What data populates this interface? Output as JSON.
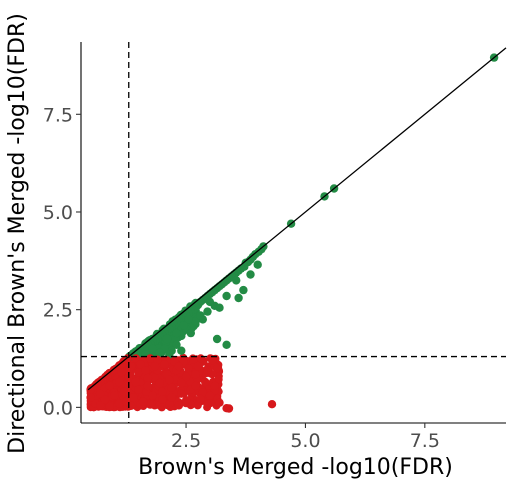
{
  "chart_data": {
    "type": "scatter",
    "title": "",
    "xlabel": "Brown's Merged -log10(FDR)",
    "ylabel": "Directional Brown's Merged -log10(FDR)",
    "xlim": [
      0.3,
      9.2
    ],
    "ylim": [
      -0.4,
      9.35
    ],
    "x_ticks": [
      2.5,
      5.0,
      7.5
    ],
    "x_tick_labels": [
      "2.5",
      "5.0",
      "7.5"
    ],
    "y_ticks": [
      0.0,
      2.5,
      5.0,
      7.5
    ],
    "y_tick_labels": [
      "0.0",
      "2.5",
      "5.0",
      "7.5"
    ],
    "grid": false,
    "legend": "none",
    "reference_lines": {
      "identity_line": "y = x",
      "vertical_threshold_x": 1.3,
      "horizontal_threshold_y": 1.3
    },
    "series": [
      {
        "color": "#238b45",
        "points": [
          [
            8.95,
            8.95
          ],
          [
            5.6,
            5.6
          ],
          [
            5.4,
            5.4
          ],
          [
            4.7,
            4.7
          ],
          [
            4.12,
            4.12
          ],
          [
            4.08,
            4.05
          ],
          [
            4.02,
            3.98
          ],
          [
            3.95,
            3.92
          ],
          [
            3.9,
            3.85
          ],
          [
            3.85,
            3.78
          ],
          [
            3.8,
            3.72
          ],
          [
            3.75,
            3.7
          ],
          [
            3.72,
            3.6
          ],
          [
            3.65,
            3.55
          ],
          [
            3.6,
            3.5
          ],
          [
            3.55,
            3.45
          ],
          [
            3.5,
            3.4
          ],
          [
            3.45,
            3.35
          ],
          [
            3.4,
            3.3
          ],
          [
            3.35,
            3.25
          ],
          [
            3.3,
            3.2
          ],
          [
            3.25,
            3.15
          ],
          [
            3.2,
            3.1
          ],
          [
            3.15,
            3.05
          ],
          [
            3.1,
            3.0
          ],
          [
            3.05,
            2.95
          ],
          [
            3.0,
            2.9
          ],
          [
            2.95,
            2.85
          ],
          [
            2.9,
            2.8
          ],
          [
            2.85,
            2.75
          ],
          [
            2.8,
            2.7
          ],
          [
            2.75,
            2.62
          ],
          [
            2.7,
            2.55
          ],
          [
            2.65,
            2.5
          ],
          [
            2.6,
            2.45
          ],
          [
            2.55,
            2.4
          ],
          [
            2.5,
            2.35
          ],
          [
            2.45,
            2.3
          ],
          [
            2.4,
            2.25
          ],
          [
            2.35,
            2.2
          ],
          [
            2.3,
            2.15
          ],
          [
            2.25,
            2.1
          ],
          [
            2.2,
            2.05
          ],
          [
            2.15,
            2.0
          ],
          [
            2.1,
            1.95
          ],
          [
            2.05,
            1.9
          ],
          [
            2.0,
            1.85
          ],
          [
            1.95,
            1.8
          ],
          [
            1.9,
            1.75
          ],
          [
            1.85,
            1.7
          ],
          [
            1.8,
            1.68
          ],
          [
            1.75,
            1.62
          ],
          [
            1.7,
            1.6
          ],
          [
            1.65,
            1.55
          ],
          [
            1.6,
            1.5
          ],
          [
            1.55,
            1.45
          ],
          [
            1.5,
            1.4
          ],
          [
            1.45,
            1.38
          ],
          [
            1.4,
            1.35
          ],
          [
            1.35,
            1.32
          ],
          [
            1.32,
            1.31
          ],
          [
            3.55,
            3.25
          ],
          [
            3.35,
            2.85
          ],
          [
            3.1,
            2.6
          ],
          [
            2.95,
            2.45
          ],
          [
            2.85,
            2.25
          ],
          [
            3.6,
            2.8
          ],
          [
            3.7,
            3.0
          ],
          [
            2.3,
            1.6
          ],
          [
            2.2,
            1.45
          ],
          [
            2.1,
            1.75
          ],
          [
            2.3,
            1.9
          ],
          [
            2.4,
            1.45
          ],
          [
            2.5,
            2.0
          ],
          [
            2.7,
            2.2
          ],
          [
            2.6,
            1.9
          ],
          [
            2.8,
            2.35
          ],
          [
            3.0,
            2.7
          ],
          [
            3.2,
            2.55
          ],
          [
            3.15,
            1.75
          ],
          [
            3.35,
            1.6
          ],
          [
            2.05,
            1.5
          ],
          [
            1.95,
            1.4
          ],
          [
            2.15,
            1.35
          ],
          [
            1.8,
            1.5
          ],
          [
            1.65,
            1.35
          ],
          [
            2.55,
            2.25
          ],
          [
            2.45,
            2.1
          ],
          [
            3.85,
            3.4
          ],
          [
            4.0,
            3.65
          ]
        ]
      },
      {
        "color": "#d7191c",
        "points": [
          [
            1.28,
            1.25
          ],
          [
            1.26,
            1.22
          ],
          [
            1.24,
            1.18
          ],
          [
            1.2,
            1.15
          ],
          [
            1.15,
            1.1
          ],
          [
            1.1,
            1.05
          ],
          [
            1.05,
            1.0
          ],
          [
            1.0,
            0.95
          ],
          [
            0.95,
            0.9
          ],
          [
            0.9,
            0.85
          ],
          [
            0.85,
            0.8
          ],
          [
            0.8,
            0.75
          ],
          [
            0.75,
            0.7
          ],
          [
            0.7,
            0.65
          ],
          [
            0.65,
            0.6
          ],
          [
            0.6,
            0.55
          ],
          [
            0.55,
            0.5
          ],
          [
            0.5,
            0.45
          ],
          [
            1.45,
            1.25
          ],
          [
            1.6,
            1.2
          ],
          [
            1.75,
            1.25
          ],
          [
            1.9,
            1.22
          ],
          [
            2.1,
            1.2
          ],
          [
            2.25,
            1.18
          ],
          [
            2.45,
            1.15
          ],
          [
            2.65,
            1.22
          ],
          [
            1.5,
            0.9
          ],
          [
            1.7,
            0.75
          ],
          [
            1.9,
            0.95
          ],
          [
            2.1,
            0.85
          ],
          [
            2.3,
            0.95
          ],
          [
            2.5,
            0.78
          ],
          [
            2.7,
            0.85
          ],
          [
            2.9,
            0.65
          ],
          [
            3.05,
            0.85
          ],
          [
            2.85,
            0.38
          ],
          [
            3.2,
            0.12
          ],
          [
            2.95,
            0.08
          ],
          [
            2.6,
            0.06
          ],
          [
            2.35,
            0.05
          ],
          [
            2.15,
            0.08
          ],
          [
            1.95,
            0.05
          ],
          [
            1.75,
            0.07
          ],
          [
            1.55,
            0.08
          ],
          [
            1.35,
            0.04
          ],
          [
            3.35,
            -0.02
          ],
          [
            3.4,
            -0.03
          ],
          [
            4.3,
            0.08
          ],
          [
            1.5,
            0.45
          ],
          [
            1.7,
            0.55
          ],
          [
            2.0,
            0.4
          ],
          [
            2.2,
            0.5
          ],
          [
            2.4,
            0.35
          ],
          [
            2.6,
            0.45
          ],
          [
            2.8,
            0.22
          ],
          [
            3.0,
            0.3
          ],
          [
            1.4,
            0.25
          ],
          [
            1.6,
            0.15
          ],
          [
            1.8,
            0.3
          ],
          [
            2.0,
            0.2
          ],
          [
            2.2,
            0.25
          ],
          [
            2.5,
            0.18
          ],
          [
            1.3,
            0.8
          ],
          [
            1.3,
            0.55
          ],
          [
            1.2,
            0.4
          ],
          [
            1.0,
            0.3
          ],
          [
            0.8,
            0.2
          ],
          [
            0.6,
            0.1
          ],
          [
            0.5,
            0.25
          ],
          [
            0.7,
            0.35
          ],
          [
            0.9,
            0.55
          ],
          [
            1.1,
            0.65
          ],
          [
            1.35,
            1.05
          ],
          [
            1.55,
            1.1
          ],
          [
            1.85,
            1.05
          ],
          [
            2.05,
            1.1
          ],
          [
            2.35,
            1.05
          ],
          [
            2.55,
            1.0
          ],
          [
            2.75,
            1.05
          ],
          [
            2.95,
            0.95
          ],
          [
            1.65,
            0.95
          ],
          [
            1.45,
            0.65
          ],
          [
            0.9,
            0.02
          ],
          [
            1.1,
            0.1
          ],
          [
            1.25,
            0.15
          ],
          [
            0.7,
            0.05
          ],
          [
            2.4,
            0.62
          ],
          [
            2.15,
            0.7
          ],
          [
            1.95,
            0.62
          ],
          [
            3.1,
            0.55
          ],
          [
            2.7,
            0.55
          ],
          [
            1.15,
            0.9
          ]
        ]
      }
    ]
  }
}
